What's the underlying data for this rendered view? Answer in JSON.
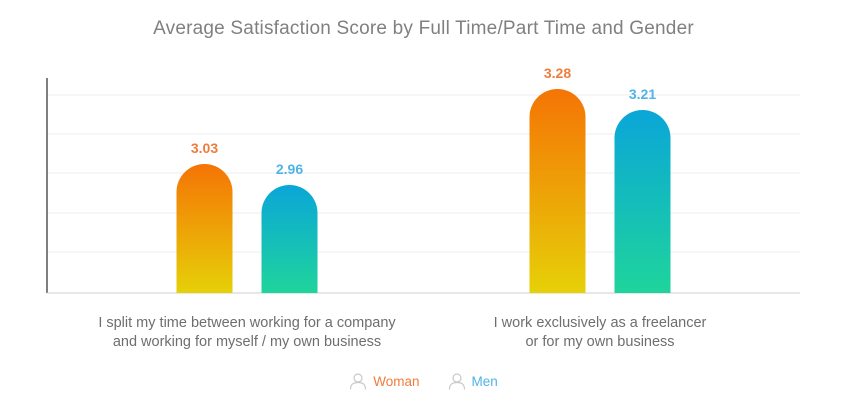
{
  "chart_data": {
    "type": "bar",
    "title": "Average Satisfaction Score by Full Time/Part Time and Gender",
    "categories": [
      [
        "I split my time between working for a company",
        "and working for myself / my own business"
      ],
      [
        "I work exclusively as a freelancer",
        "or for my own business"
      ]
    ],
    "series": [
      {
        "name": "Woman",
        "values": [
          3.03,
          3.28
        ],
        "color": "#f07c3c",
        "gradient": [
          "#f57406",
          "#e6d008"
        ],
        "icon": "person-outline-icon"
      },
      {
        "name": "Men",
        "values": [
          2.96,
          3.21
        ],
        "color": "#4fb3e6",
        "gradient": [
          "#0aa6d8",
          "#1fd49c"
        ],
        "icon": "person-outline-icon"
      }
    ],
    "ylim": [
      2.6,
      3.35
    ],
    "grid": true,
    "legend": "bottom-center",
    "xlabel": "",
    "ylabel": ""
  }
}
